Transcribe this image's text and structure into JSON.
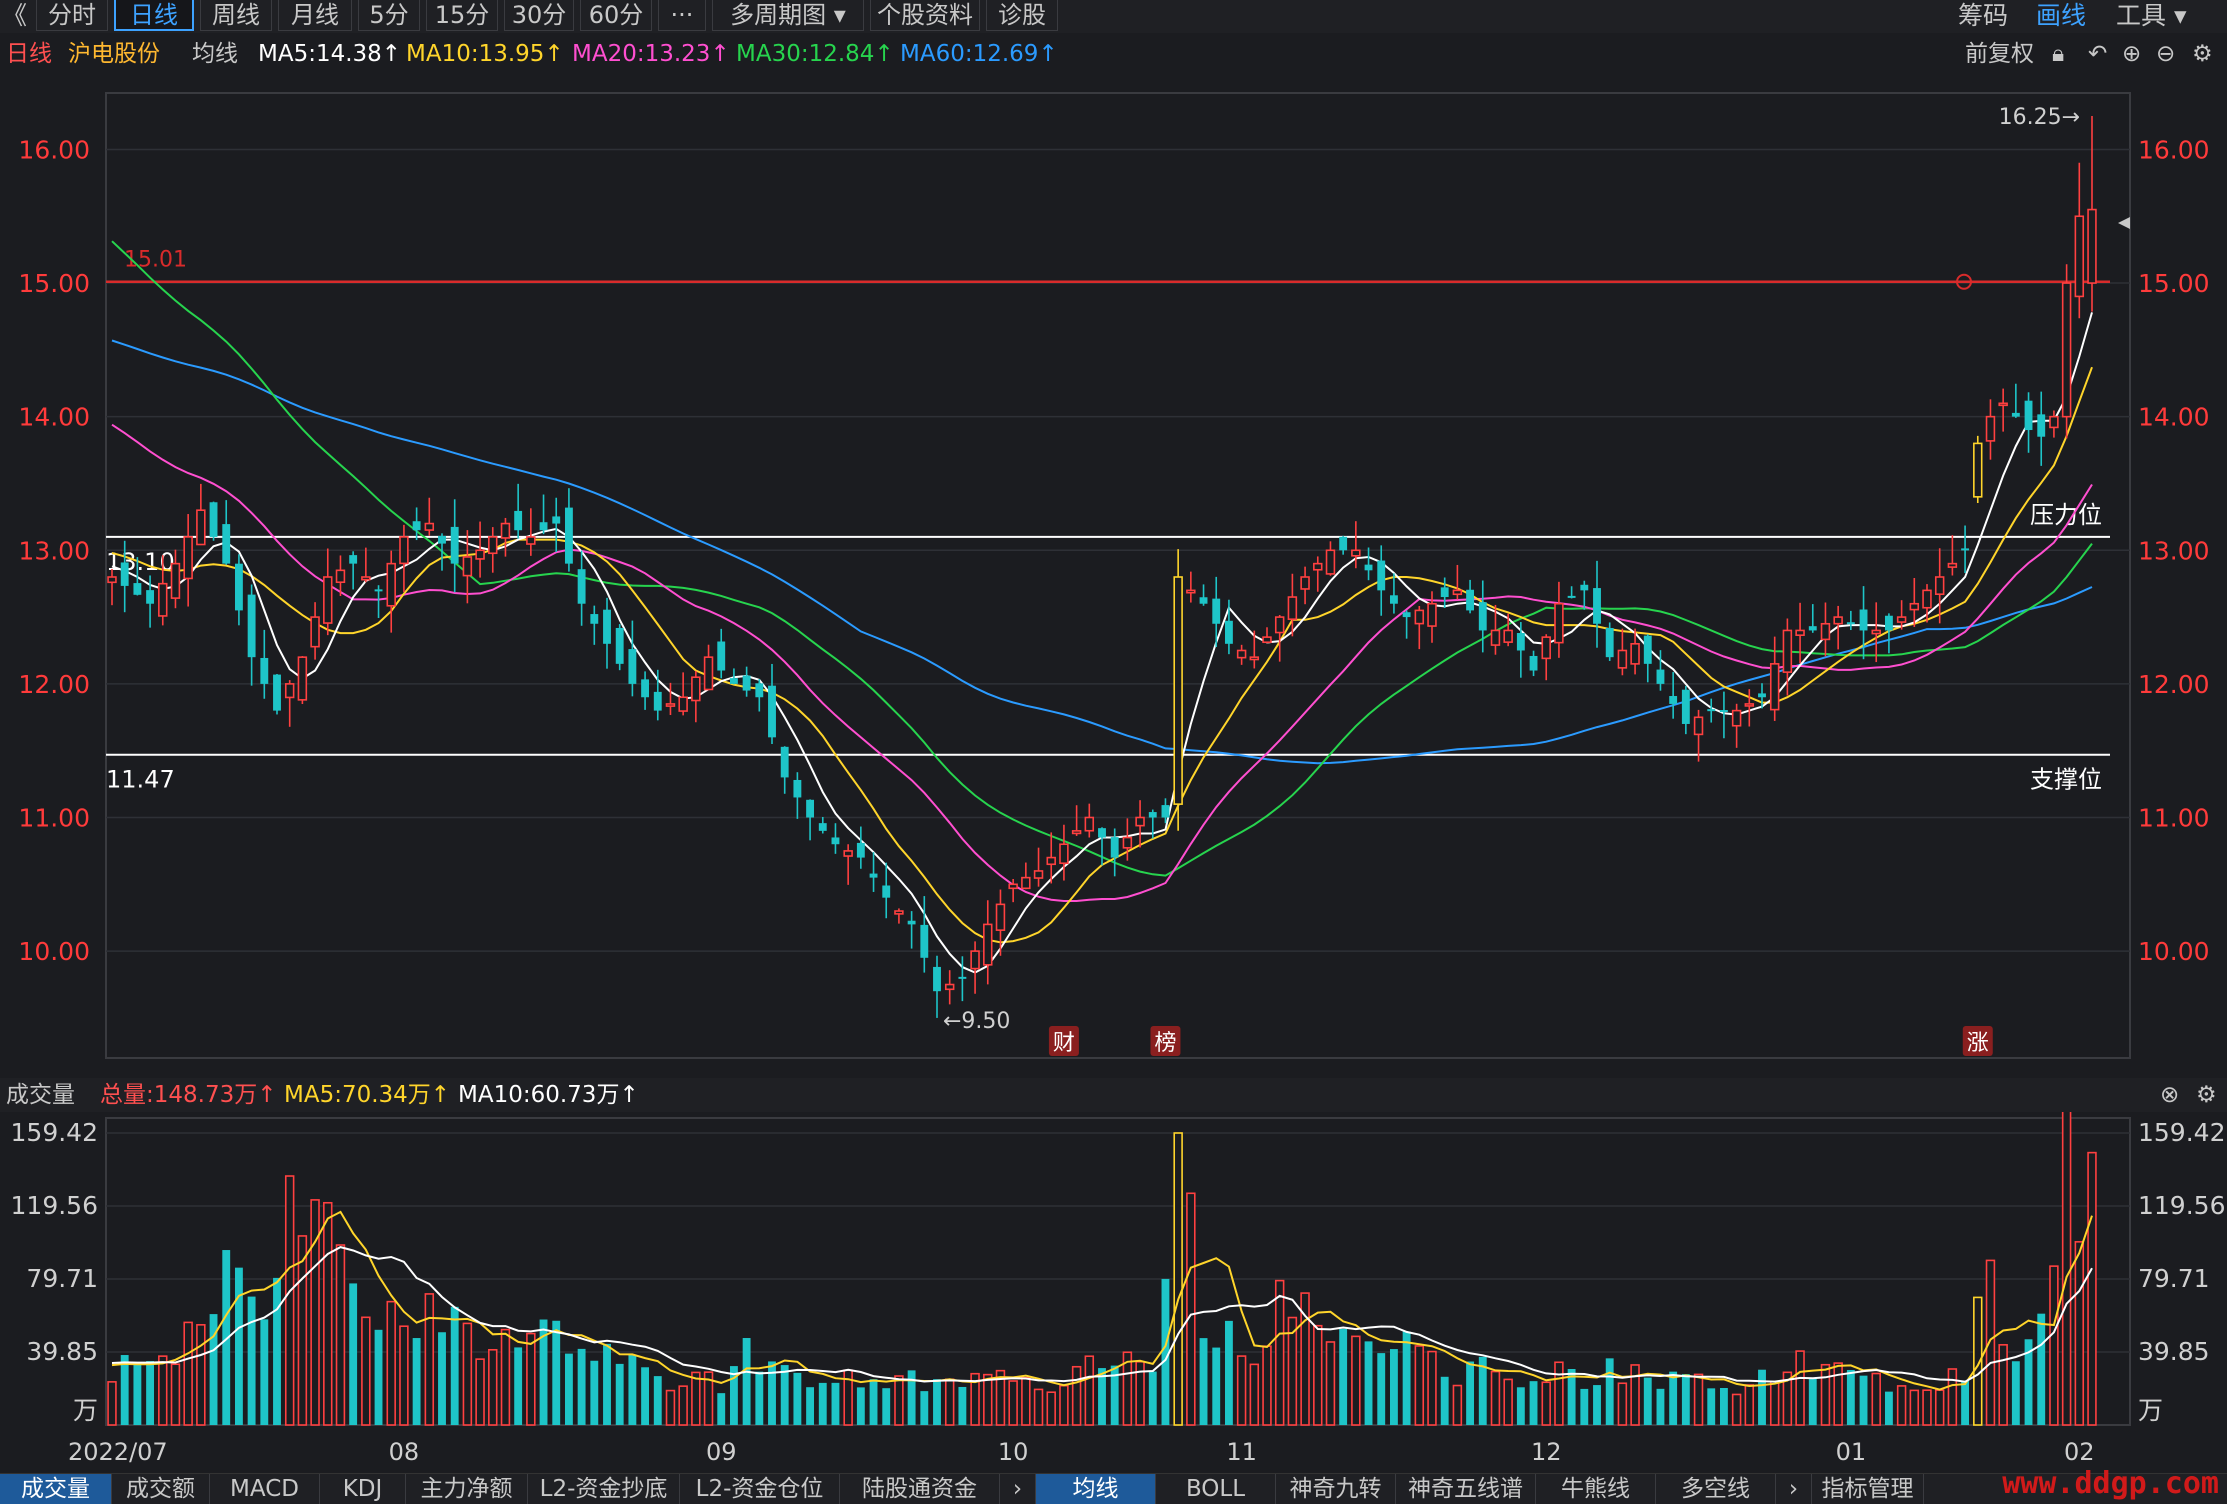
{
  "toolbar": {
    "back": "《",
    "tabs": [
      "分时",
      "日线",
      "周线",
      "月线",
      "5分",
      "15分",
      "30分",
      "60分",
      "···",
      "多周期图 ▾",
      "个股资料",
      "诊股"
    ],
    "active_index": 1,
    "right": [
      "筹码",
      "画线",
      "工具 ▾"
    ]
  },
  "info": {
    "period": "日线",
    "stock": "沪电股份",
    "ma_label": "均线",
    "ma5": "MA5:14.38↑",
    "ma10": "MA10:13.95↑",
    "ma20": "MA20:13.23↑",
    "ma30": "MA30:12.84↑",
    "ma60": "MA60:12.69↑",
    "adjust": "前复权"
  },
  "colors": {
    "up": "#ff4040",
    "down": "#1ec5c8",
    "ma5": "#ffffff",
    "ma10": "#ffd52b",
    "ma20": "#ff4fd0",
    "ma30": "#27d44e",
    "ma60": "#2b9bff",
    "axis_red": "#ff3b3b"
  },
  "volume_info": {
    "title": "成交量",
    "total": "总量:148.73万↑",
    "ma5": "MA5:70.34万↑",
    "ma10": "MA10:60.73万↑"
  },
  "bottom_tabs": [
    "成交量",
    "成交额",
    "MACD",
    "KDJ",
    "主力净额",
    "L2-资金抄底",
    "L2-资金仓位",
    "陆股通资金",
    "›",
    "均线",
    "BOLL",
    "神奇九转",
    "神奇五线谱",
    "牛熊线",
    "多空线",
    "›",
    "指标管理"
  ],
  "watermark": "www.ddgp.com",
  "chart_data": {
    "type": "candlestick",
    "price_axis": {
      "ticks": [
        "16.00",
        "15.00",
        "14.00",
        "13.00",
        "12.00",
        "11.00",
        "10.00"
      ],
      "range": [
        9.2,
        16.4
      ]
    },
    "volume_axis": {
      "ticks": [
        "159.42",
        "119.56",
        "79.71",
        "39.85",
        "万"
      ],
      "range": [
        0,
        159.42
      ]
    },
    "x_ticks": [
      "2022/07",
      "08",
      "09",
      "10",
      "11",
      "12",
      "01",
      "02"
    ],
    "x_tick_index": [
      0,
      23,
      48,
      71,
      89,
      113,
      137,
      155
    ],
    "annotations": {
      "high": "16.25→",
      "low": "←9.50",
      "hline_red": "15.01",
      "resistance_value": "13.10",
      "resistance_label": "压力位",
      "support_value": "11.47",
      "support_label": "支撑位",
      "events": [
        {
          "index": 75,
          "label": "财"
        },
        {
          "index": 83,
          "label": "榜"
        },
        {
          "index": 147,
          "label": "涨"
        }
      ]
    },
    "lines": {
      "red": 15.01,
      "resistance": 13.1,
      "support": 11.47
    },
    "close_anchors": [
      [
        0,
        12.8
      ],
      [
        3,
        12.6
      ],
      [
        5,
        12.9
      ],
      [
        7,
        13.3
      ],
      [
        9,
        12.9
      ],
      [
        11,
        12.2
      ],
      [
        13,
        11.8
      ],
      [
        15,
        12.2
      ],
      [
        17,
        12.8
      ],
      [
        19,
        12.9
      ],
      [
        21,
        12.7
      ],
      [
        23,
        13.1
      ],
      [
        25,
        13.2
      ],
      [
        27,
        12.9
      ],
      [
        29,
        13.0
      ],
      [
        31,
        13.2
      ],
      [
        33,
        13.1
      ],
      [
        35,
        13.2
      ],
      [
        37,
        12.6
      ],
      [
        39,
        12.3
      ],
      [
        41,
        12.0
      ],
      [
        43,
        11.8
      ],
      [
        45,
        11.9
      ],
      [
        47,
        12.2
      ],
      [
        49,
        12.0
      ],
      [
        51,
        11.9
      ],
      [
        53,
        11.3
      ],
      [
        55,
        11.0
      ],
      [
        57,
        10.8
      ],
      [
        59,
        10.7
      ],
      [
        61,
        10.4
      ],
      [
        63,
        10.2
      ],
      [
        65,
        9.7
      ],
      [
        67,
        9.8
      ],
      [
        69,
        10.2
      ],
      [
        71,
        10.5
      ],
      [
        73,
        10.6
      ],
      [
        75,
        10.8
      ],
      [
        77,
        11.0
      ],
      [
        79,
        10.7
      ],
      [
        81,
        11.0
      ],
      [
        83,
        11.0
      ],
      [
        84,
        12.8
      ],
      [
        86,
        12.6
      ],
      [
        88,
        12.3
      ],
      [
        90,
        12.2
      ],
      [
        92,
        12.5
      ],
      [
        94,
        12.8
      ],
      [
        96,
        13.0
      ],
      [
        98,
        13.0
      ],
      [
        100,
        12.7
      ],
      [
        102,
        12.5
      ],
      [
        104,
        12.6
      ],
      [
        106,
        12.7
      ],
      [
        108,
        12.4
      ],
      [
        110,
        12.4
      ],
      [
        112,
        12.1
      ],
      [
        114,
        12.6
      ],
      [
        116,
        12.7
      ],
      [
        118,
        12.2
      ],
      [
        120,
        12.3
      ],
      [
        122,
        12.0
      ],
      [
        124,
        11.7
      ],
      [
        126,
        11.8
      ],
      [
        128,
        11.8
      ],
      [
        130,
        11.9
      ],
      [
        132,
        12.4
      ],
      [
        134,
        12.4
      ],
      [
        136,
        12.5
      ],
      [
        138,
        12.4
      ],
      [
        140,
        12.4
      ],
      [
        142,
        12.6
      ],
      [
        144,
        12.8
      ],
      [
        146,
        13.0
      ],
      [
        147,
        13.8
      ],
      [
        148,
        14.0
      ],
      [
        149,
        14.1
      ],
      [
        150,
        14.0
      ],
      [
        151,
        13.9
      ],
      [
        152,
        13.85
      ],
      [
        153,
        14.0
      ],
      [
        154,
        15.0
      ],
      [
        155,
        15.5
      ]
    ],
    "volume_anchors": [
      [
        0,
        30
      ],
      [
        3,
        40
      ],
      [
        6,
        45
      ],
      [
        8,
        60
      ],
      [
        10,
        110
      ],
      [
        12,
        60
      ],
      [
        14,
        115
      ],
      [
        16,
        110
      ],
      [
        18,
        95
      ],
      [
        20,
        70
      ],
      [
        22,
        60
      ],
      [
        24,
        58
      ],
      [
        26,
        60
      ],
      [
        28,
        55
      ],
      [
        30,
        38
      ],
      [
        32,
        52
      ],
      [
        34,
        62
      ],
      [
        36,
        45
      ],
      [
        38,
        38
      ],
      [
        40,
        35
      ],
      [
        42,
        28
      ],
      [
        44,
        20
      ],
      [
        46,
        25
      ],
      [
        48,
        22
      ],
      [
        50,
        40
      ],
      [
        52,
        28
      ],
      [
        54,
        25
      ],
      [
        56,
        22
      ],
      [
        58,
        24
      ],
      [
        60,
        22
      ],
      [
        62,
        25
      ],
      [
        64,
        24
      ],
      [
        66,
        20
      ],
      [
        68,
        25
      ],
      [
        70,
        24
      ],
      [
        72,
        25
      ],
      [
        74,
        22
      ],
      [
        76,
        35
      ],
      [
        78,
        28
      ],
      [
        80,
        40
      ],
      [
        82,
        25
      ],
      [
        83,
        85
      ],
      [
        84,
        155
      ],
      [
        86,
        60
      ],
      [
        88,
        48
      ],
      [
        90,
        40
      ],
      [
        92,
        70
      ],
      [
        94,
        60
      ],
      [
        96,
        52
      ],
      [
        98,
        42
      ],
      [
        100,
        50
      ],
      [
        102,
        45
      ],
      [
        104,
        35
      ],
      [
        106,
        28
      ],
      [
        108,
        38
      ],
      [
        110,
        28
      ],
      [
        112,
        25
      ],
      [
        114,
        30
      ],
      [
        116,
        25
      ],
      [
        118,
        30
      ],
      [
        120,
        28
      ],
      [
        122,
        26
      ],
      [
        124,
        25
      ],
      [
        126,
        22
      ],
      [
        128,
        22
      ],
      [
        130,
        25
      ],
      [
        132,
        35
      ],
      [
        134,
        30
      ],
      [
        136,
        28
      ],
      [
        138,
        25
      ],
      [
        140,
        22
      ],
      [
        142,
        24
      ],
      [
        144,
        25
      ],
      [
        146,
        28
      ],
      [
        147,
        60
      ],
      [
        148,
        115
      ],
      [
        149,
        50
      ],
      [
        150,
        38
      ],
      [
        151,
        42
      ],
      [
        152,
        55
      ],
      [
        153,
        105
      ],
      [
        154,
        155
      ],
      [
        155,
        150
      ]
    ]
  }
}
